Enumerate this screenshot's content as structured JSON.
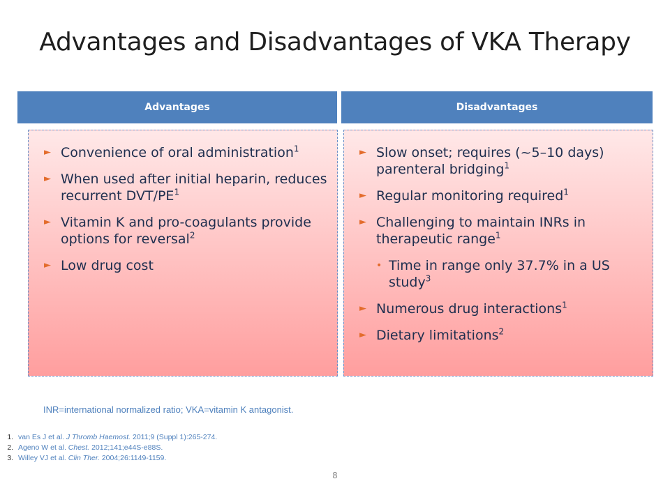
{
  "slide": {
    "title": "Advantages and Disadvantages of VKA Therapy",
    "page_number": "8"
  },
  "advantages": {
    "header": "Advantages",
    "items": [
      {
        "text": "Convenience of oral administration",
        "sup": "1"
      },
      {
        "text": "When used after initial heparin, reduces recurrent DVT/PE",
        "sup": "1"
      },
      {
        "text": "Vitamin K and pro-coagulants provide options for reversal",
        "sup": "2"
      },
      {
        "text": "Low drug cost",
        "sup": ""
      }
    ]
  },
  "disadvantages": {
    "header": "Disadvantages",
    "items": [
      {
        "text": "Slow onset; requires (~5–10 days) parenteral bridging",
        "sup": "1"
      },
      {
        "text": "Regular monitoring required",
        "sup": "1"
      },
      {
        "text": "Challenging to maintain INRs in therapeutic range",
        "sup": "1"
      },
      {
        "text": "Time in range only 37.7% in a US study",
        "sup": "3"
      },
      {
        "text": "Numerous drug interactions",
        "sup": "1"
      },
      {
        "text": "Dietary limitations",
        "sup": "2"
      }
    ]
  },
  "footnote": {
    "abbreviations": "INR=international normalized ratio; VKA=vitamin K antagonist."
  },
  "references": [
    {
      "authors": "van Es J et al.",
      "journal": "J Thromb Haemost.",
      "details": "2011;9 (Suppl 1):265-274."
    },
    {
      "authors": "Ageno W et al.",
      "journal": "Chest.",
      "details": "2012;141;e44S-e88S."
    },
    {
      "authors": "Willey VJ et al.",
      "journal": "Clin Ther.",
      "details": "2004;26:1149-1159."
    }
  ],
  "icons": {
    "bullet": "right-triangle-arrow",
    "sub_bullet": "dot"
  },
  "colors": {
    "header_bg": "#4f81bd",
    "bullet": "#e36c2c",
    "panel_top": "#ffe8e8",
    "panel_bottom": "#ff9e9e",
    "footnote": "#4f81bd"
  }
}
